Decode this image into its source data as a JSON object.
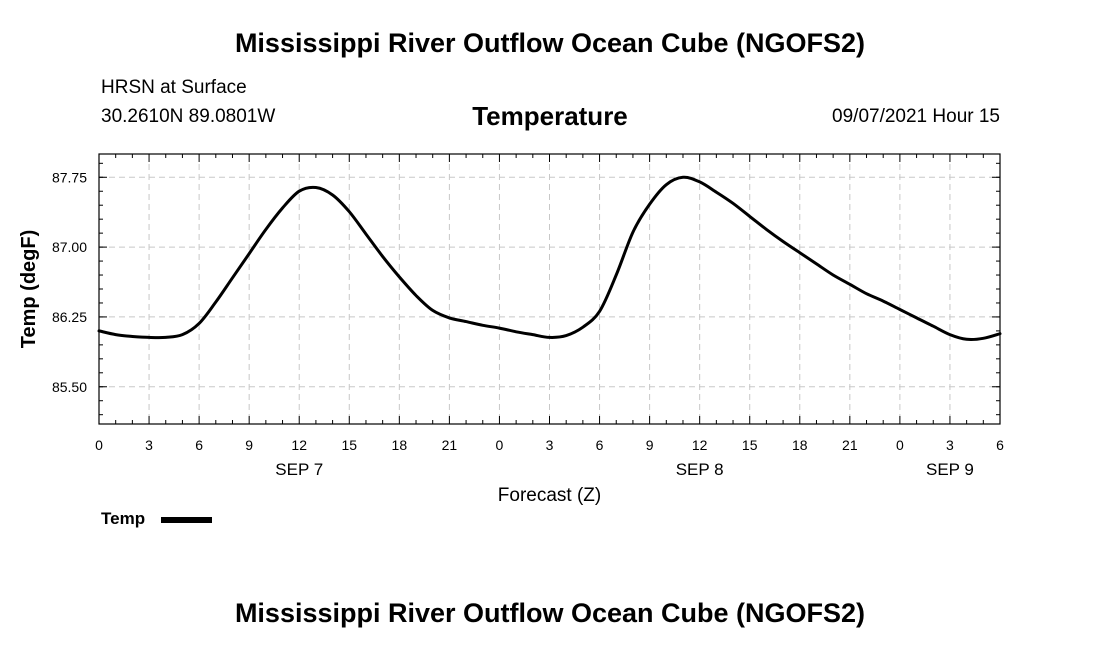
{
  "header": {
    "main_title": "Mississippi River Outflow Ocean Cube (NGOFS2)",
    "station": "HRSN at Surface",
    "coords": "30.2610N  89.0801W",
    "chart_title": "Temperature",
    "datetime": "09/07/2021 Hour 15"
  },
  "footer": {
    "main_title": "Mississippi River Outflow Ocean Cube (NGOFS2)"
  },
  "legend": {
    "label": "Temp"
  },
  "colors": {
    "line": "#000000",
    "grid": "#c8c8c8",
    "axis": "#000000"
  },
  "chart_data": {
    "type": "line",
    "title": "Temperature",
    "xlabel": "Forecast (Z)",
    "ylabel": "Temp (degF)",
    "xlim": [
      0,
      54
    ],
    "ylim": [
      85.1,
      88.0
    ],
    "x_ticks": [
      0,
      3,
      6,
      9,
      12,
      15,
      18,
      21,
      24,
      27,
      30,
      33,
      36,
      39,
      42,
      45,
      48,
      51,
      54
    ],
    "x_tick_labels": [
      "0",
      "3",
      "6",
      "9",
      "12",
      "15",
      "18",
      "21",
      "0",
      "3",
      "6",
      "9",
      "12",
      "15",
      "18",
      "21",
      "0",
      "3",
      "6"
    ],
    "date_labels": [
      {
        "x": 12,
        "label": "SEP 7"
      },
      {
        "x": 36,
        "label": "SEP 8"
      },
      {
        "x": 51,
        "label": "SEP 9"
      }
    ],
    "y_ticks": [
      85.5,
      86.25,
      87.0,
      87.75
    ],
    "y_tick_labels": [
      "85.50",
      "86.25",
      "87.00",
      "87.75"
    ],
    "grid": true,
    "series": [
      {
        "name": "Temp",
        "x": [
          0,
          1,
          2,
          3,
          4,
          5,
          6,
          7,
          8,
          9,
          10,
          11,
          12,
          13,
          14,
          15,
          16,
          17,
          18,
          19,
          20,
          21,
          22,
          23,
          24,
          25,
          26,
          27,
          28,
          29,
          30,
          31,
          32,
          33,
          34,
          35,
          36,
          37,
          38,
          39,
          40,
          41,
          42,
          43,
          44,
          45,
          46,
          47,
          48,
          49,
          50,
          51,
          52,
          53,
          54
        ],
        "values": [
          86.1,
          86.06,
          86.04,
          86.03,
          86.03,
          86.06,
          86.18,
          86.41,
          86.67,
          86.93,
          87.19,
          87.42,
          87.6,
          87.64,
          87.56,
          87.38,
          87.14,
          86.9,
          86.68,
          86.48,
          86.32,
          86.24,
          86.2,
          86.16,
          86.13,
          86.09,
          86.06,
          86.03,
          86.05,
          86.14,
          86.31,
          86.7,
          87.16,
          87.46,
          87.67,
          87.75,
          87.7,
          87.59,
          87.47,
          87.33,
          87.19,
          87.06,
          86.94,
          86.82,
          86.7,
          86.6,
          86.5,
          86.42,
          86.33,
          86.24,
          86.15,
          86.06,
          86.01,
          86.02,
          86.07
        ]
      }
    ]
  }
}
